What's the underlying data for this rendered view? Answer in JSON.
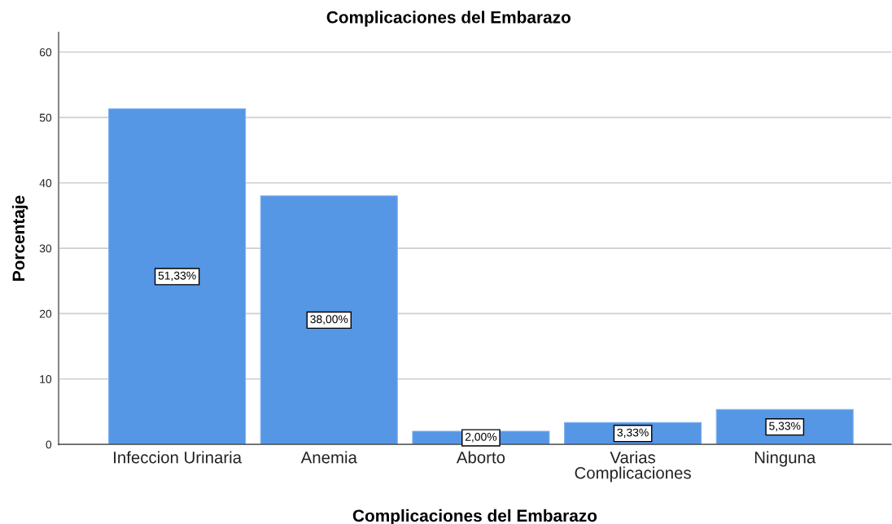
{
  "chart_data": {
    "type": "bar",
    "title": "Complicaciones del Embarazo",
    "xlabel": "Complicaciones del Embarazo",
    "ylabel": "Porcentaje",
    "categories": [
      "Infeccion Urinaria",
      "Anemia",
      "Aborto",
      "Varias Complicaciones",
      "Ninguna"
    ],
    "values": [
      51.33,
      38.0,
      2.0,
      3.33,
      5.33
    ],
    "value_labels": [
      "51,33%",
      "38,00%",
      "2,00%",
      "3,33%",
      "5,33%"
    ],
    "color": "#5596e5",
    "ylim": [
      0,
      63
    ],
    "yticks": [
      0,
      10,
      20,
      30,
      40,
      50,
      60
    ],
    "grid": "y"
  }
}
